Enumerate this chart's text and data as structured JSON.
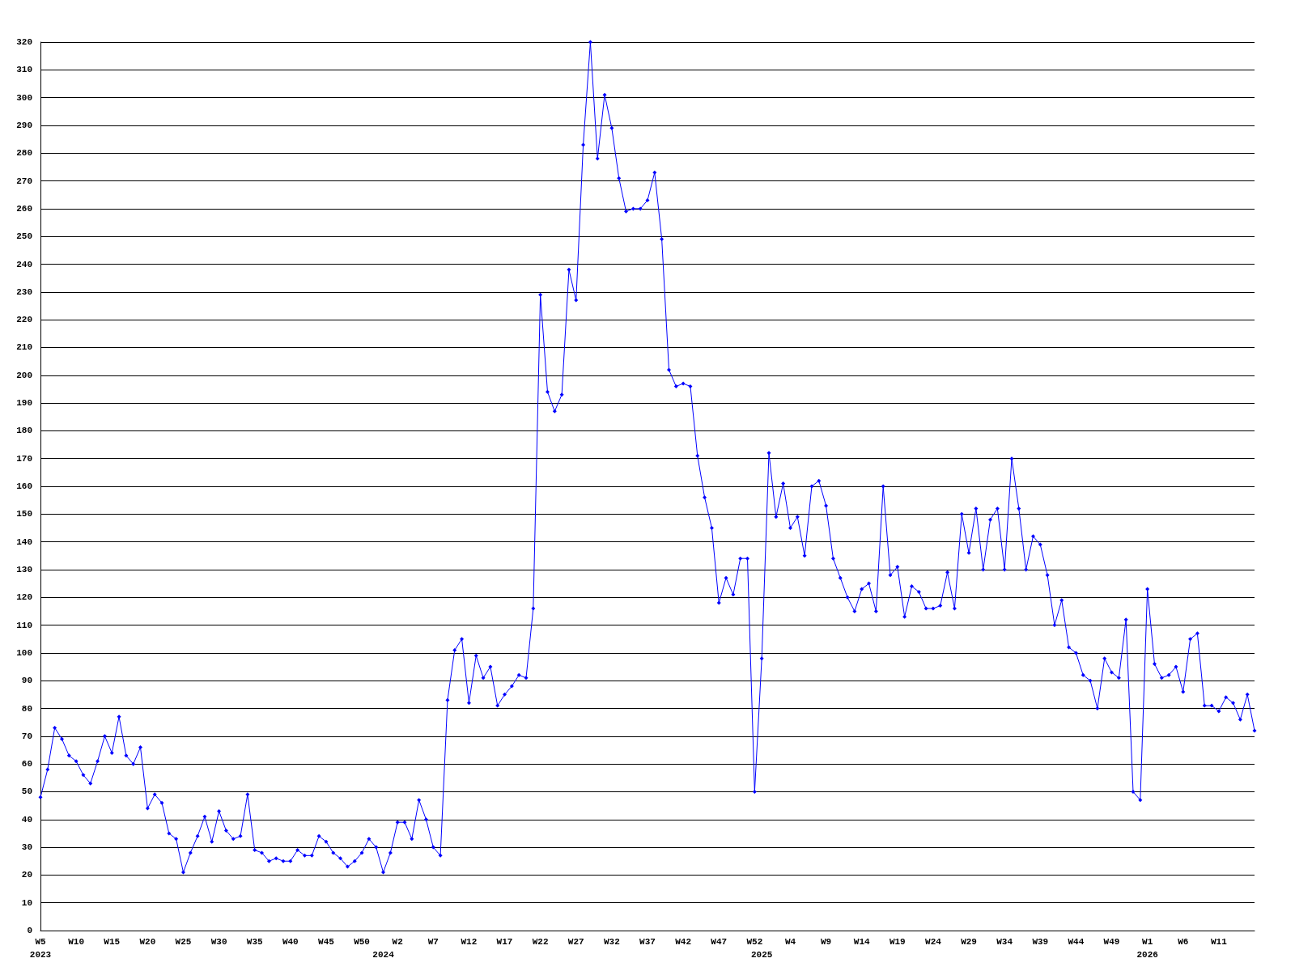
{
  "chart_data": {
    "type": "line",
    "color": "#0000ff",
    "marker": "diamond",
    "grid": "y",
    "ylim": [
      0,
      320
    ],
    "yticks": [
      0,
      10,
      20,
      30,
      40,
      50,
      60,
      70,
      80,
      90,
      100,
      110,
      120,
      130,
      140,
      150,
      160,
      170,
      180,
      190,
      200,
      210,
      220,
      230,
      240,
      250,
      260,
      270,
      280,
      290,
      300,
      310,
      320
    ],
    "categories": [
      "W5\n2023",
      null,
      null,
      null,
      null,
      "W10",
      null,
      null,
      null,
      null,
      "W15",
      null,
      null,
      null,
      null,
      "W20",
      null,
      null,
      null,
      null,
      "W25",
      null,
      null,
      null,
      null,
      "W30",
      null,
      null,
      null,
      null,
      "W35",
      null,
      null,
      null,
      null,
      "W40",
      null,
      null,
      null,
      null,
      "W45",
      null,
      null,
      null,
      null,
      "W50",
      null,
      null,
      "\n2024",
      null,
      "W2",
      null,
      null,
      null,
      null,
      "W7",
      null,
      null,
      null,
      null,
      "W12",
      null,
      null,
      null,
      null,
      "W17",
      null,
      null,
      null,
      null,
      "W22",
      null,
      null,
      null,
      null,
      "W27",
      null,
      null,
      null,
      null,
      "W32",
      null,
      null,
      null,
      null,
      "W37",
      null,
      null,
      null,
      null,
      "W42",
      null,
      null,
      null,
      null,
      "W47",
      null,
      null,
      null,
      null,
      "W52",
      "\n2025",
      null,
      null,
      null,
      "W4",
      null,
      null,
      null,
      null,
      "W9",
      null,
      null,
      null,
      null,
      "W14",
      null,
      null,
      null,
      null,
      "W19",
      null,
      null,
      null,
      null,
      "W24",
      null,
      null,
      null,
      null,
      "W29",
      null,
      null,
      null,
      null,
      "W34",
      null,
      null,
      null,
      null,
      "W39",
      null,
      null,
      null,
      null,
      "W44",
      null,
      null,
      null,
      null,
      "W49",
      null,
      null,
      null,
      null,
      "W1\n2026",
      null,
      null,
      null,
      null,
      "W6",
      null,
      null,
      null,
      null,
      "W11",
      null,
      null,
      null,
      null,
      null
    ],
    "values": [
      48,
      58,
      73,
      69,
      63,
      61,
      56,
      53,
      61,
      70,
      64,
      77,
      63,
      60,
      66,
      44,
      49,
      46,
      35,
      33,
      21,
      28,
      34,
      41,
      32,
      43,
      36,
      33,
      34,
      49,
      29,
      28,
      25,
      26,
      25,
      25,
      29,
      27,
      27,
      34,
      32,
      28,
      26,
      23,
      25,
      28,
      33,
      30,
      21,
      28,
      39,
      39,
      33,
      47,
      40,
      30,
      27,
      83,
      101,
      105,
      82,
      99,
      91,
      95,
      81,
      85,
      88,
      92,
      91,
      116,
      229,
      194,
      187,
      193,
      238,
      227,
      283,
      320,
      278,
      301,
      289,
      271,
      259,
      260,
      260,
      263,
      273,
      249,
      202,
      196,
      197,
      196,
      171,
      156,
      145,
      118,
      127,
      121,
      134,
      134,
      50,
      98,
      172,
      149,
      161,
      145,
      149,
      135,
      160,
      162,
      153,
      134,
      127,
      120,
      115,
      123,
      125,
      115,
      160,
      128,
      131,
      113,
      124,
      122,
      116,
      116,
      117,
      129,
      116,
      150,
      136,
      152,
      130,
      148,
      152,
      130,
      170,
      152,
      130,
      142,
      139,
      128,
      110,
      119,
      102,
      100,
      92,
      90,
      80,
      98,
      93,
      91,
      112,
      50,
      47,
      123,
      96,
      91,
      92,
      95,
      86,
      105,
      107,
      81,
      81,
      79,
      84,
      82,
      76,
      85,
      72
    ]
  }
}
